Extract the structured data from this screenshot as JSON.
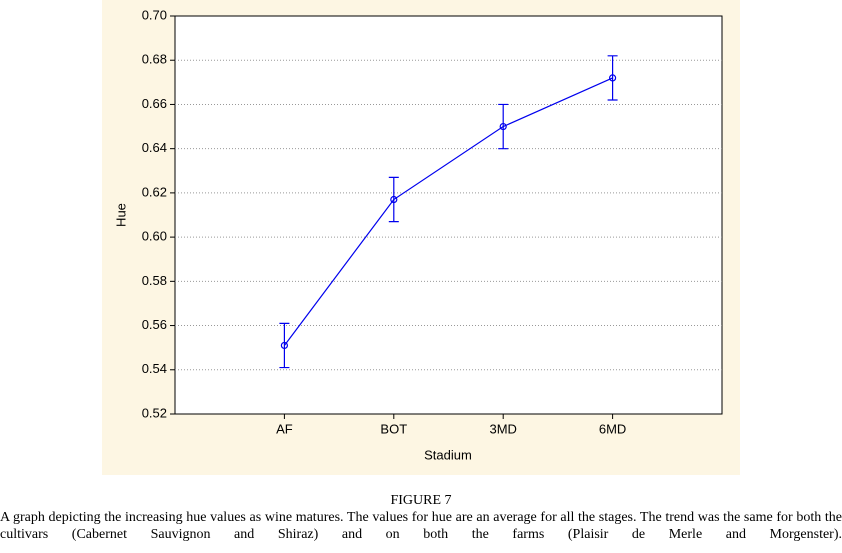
{
  "chart_data": {
    "type": "line",
    "x_label": "Stadium",
    "y_label": "Hue",
    "categories": [
      "AF",
      "BOT",
      "3MD",
      "6MD"
    ],
    "values": [
      0.551,
      0.617,
      0.65,
      0.672
    ],
    "errors": [
      0.01,
      0.01,
      0.01,
      0.01
    ],
    "color": "#0000ee",
    "ylim": [
      0.52,
      0.7
    ],
    "yticks": [
      {
        "value": 0.52,
        "label": "0.52"
      },
      {
        "value": 0.54,
        "label": "0.54"
      },
      {
        "value": 0.56,
        "label": "0.56"
      },
      {
        "value": 0.58,
        "label": "0.58"
      },
      {
        "value": 0.6,
        "label": "0.60"
      },
      {
        "value": 0.62,
        "label": "0.62"
      },
      {
        "value": 0.64,
        "label": "0.64"
      },
      {
        "value": 0.66,
        "label": "0.66"
      },
      {
        "value": 0.68,
        "label": "0.68"
      },
      {
        "value": 0.7,
        "label": "0.70"
      }
    ],
    "grid": true
  },
  "caption": {
    "label": "FIGURE 7",
    "text": "A graph depicting the increasing hue values as wine matures. The values for hue are an average for all the stages. The trend was the same for both the cultivars (Cabernet Sauvignon and Shiraz) and on both the farms (Plaisir de Merle and Morgenster)."
  }
}
